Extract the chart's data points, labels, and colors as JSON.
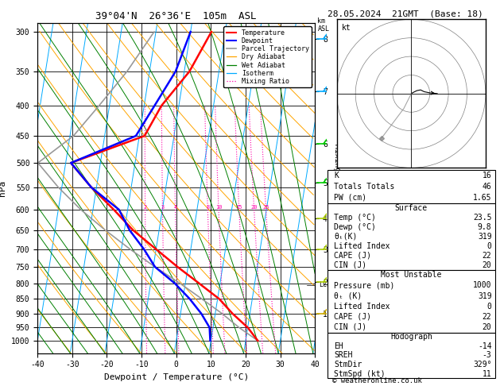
{
  "title_left": "39°04'N  26°36'E  105m  ASL",
  "title_right": "28.05.2024  21GMT  (Base: 18)",
  "xlabel": "Dewpoint / Temperature (°C)",
  "ylabel_left": "hPa",
  "ylabel_right_mix": "Mixing Ratio (g/kg)",
  "pressure_levels": [
    300,
    350,
    400,
    450,
    500,
    550,
    600,
    650,
    700,
    750,
    800,
    850,
    900,
    950,
    1000
  ],
  "temp_range": [
    -40,
    40
  ],
  "pressure_temp": [
    1000,
    950,
    900,
    850,
    800,
    750,
    700,
    650,
    600,
    550,
    500,
    450,
    400,
    350,
    300
  ],
  "temp_data": [
    23.5,
    20.0,
    15.0,
    10.5,
    4.0,
    -3.0,
    -10.0,
    -17.5,
    -24.0,
    -31.5,
    -38.5,
    -18.5,
    -15.0,
    -8.5,
    -4.0
  ],
  "dewp_data": [
    9.8,
    9.0,
    6.0,
    2.0,
    -3.0,
    -9.5,
    -13.5,
    -18.5,
    -22.5,
    -31.5,
    -38.5,
    -21.0,
    -17.0,
    -12.5,
    -10.0
  ],
  "parcel_data": [
    23.5,
    17.5,
    12.0,
    5.5,
    -1.5,
    -9.5,
    -17.5,
    -25.5,
    -33.5,
    -41.0,
    -48.0,
    -39.0,
    -33.0,
    -26.5,
    -20.5
  ],
  "skew_factor": 27.0,
  "dry_adiabat_color": "#ffa500",
  "wet_adiabat_color": "#008000",
  "isotherm_color": "#00aaff",
  "mixing_ratio_color": "#ff00aa",
  "temp_color": "#ff0000",
  "dewp_color": "#0000ff",
  "parcel_color": "#999999",
  "background_color": "#ffffff",
  "km_ticks": {
    "8": 308,
    "7": 378,
    "6": 464,
    "5": 540,
    "4": 620,
    "3": 700,
    "2": 795,
    "1": 900
  },
  "mixing_ratio_values": [
    2,
    3,
    4,
    8,
    10,
    15,
    20,
    25
  ],
  "lcl_pressure": 805,
  "info_panel": {
    "K": 16,
    "TT": 46,
    "PW": 1.65,
    "surf_temp": 23.5,
    "surf_dewp": 9.8,
    "surf_thetae": 319,
    "surf_li": 0,
    "surf_cape": 22,
    "surf_cin": 20,
    "mu_pressure": 1000,
    "mu_thetae": 319,
    "mu_li": 0,
    "mu_cape": 22,
    "mu_cin": 20,
    "EH": -14,
    "SREH": -3,
    "StmDir": "329°",
    "StmSpd": 11
  }
}
